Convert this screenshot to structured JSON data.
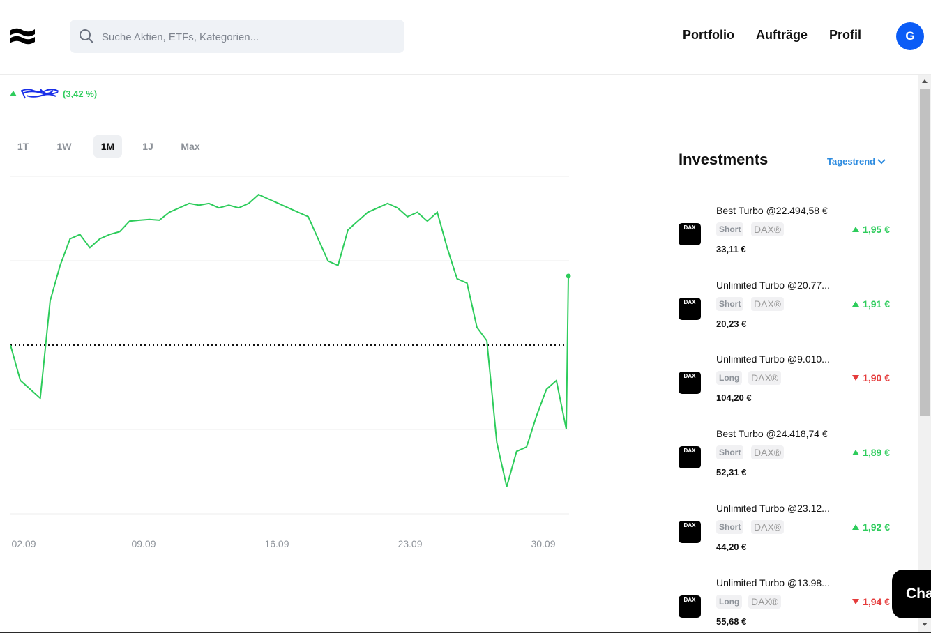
{
  "header": {
    "search_placeholder": "Suche Aktien, ETFs, Kategorien...",
    "nav": [
      "Portfolio",
      "Aufträge",
      "Profil"
    ],
    "avatar_initial": "G"
  },
  "performance": {
    "percent": "(3,42 %)",
    "direction": "up"
  },
  "ranges": [
    "1T",
    "1W",
    "1M",
    "1J",
    "Max"
  ],
  "active_range": "1M",
  "chart_data": {
    "type": "line",
    "x_ticks": [
      "02.09",
      "09.09",
      "16.09",
      "23.09",
      "30.09"
    ],
    "color": "#2dcc5b",
    "baseline_style": "dotted",
    "series": [
      {
        "values": [
          0.0,
          -0.4,
          -0.5,
          -0.6,
          0.5,
          0.9,
          1.2,
          1.25,
          1.1,
          1.2,
          1.25,
          1.28,
          1.4,
          1.41,
          1.42,
          1.41,
          1.5,
          1.55,
          1.6,
          1.58,
          1.6,
          1.55,
          1.58,
          1.55,
          1.6,
          1.7,
          1.65,
          1.6,
          1.55,
          1.5,
          1.45,
          1.2,
          0.95,
          0.9,
          1.3,
          1.4,
          1.5,
          1.55,
          1.6,
          1.55,
          1.45,
          1.5,
          1.4,
          1.5,
          1.1,
          0.75,
          0.7,
          0.2,
          0.05,
          -1.1,
          -1.6,
          -1.2,
          -1.15,
          -0.8,
          -0.5,
          -0.4,
          -0.95
        ]
      }
    ],
    "last_point": 0.78,
    "grid": true
  },
  "investments": {
    "title": "Investments",
    "trend_label": "Tagestrend",
    "items": [
      {
        "name": "Best Turbo @22.494,58 €",
        "type": "Short",
        "underlying": "DAX®",
        "value": "33,11 €",
        "change": "1,95 €",
        "dir": "up",
        "icon_text": "DAX"
      },
      {
        "name": "Unlimited Turbo @20.77...",
        "type": "Short",
        "underlying": "DAX®",
        "value": "20,23 €",
        "change": "1,91 €",
        "dir": "up",
        "icon_text": "DAX"
      },
      {
        "name": "Unlimited Turbo @9.010...",
        "type": "Long",
        "underlying": "DAX®",
        "value": "104,20 €",
        "change": "1,90 €",
        "dir": "down",
        "icon_text": "DAX"
      },
      {
        "name": "Best Turbo @24.418,74 €",
        "type": "Short",
        "underlying": "DAX®",
        "value": "52,31 €",
        "change": "1,89 €",
        "dir": "up",
        "icon_text": "DAX"
      },
      {
        "name": "Unlimited Turbo @23.12...",
        "type": "Short",
        "underlying": "DAX®",
        "value": "44,20 €",
        "change": "1,92 €",
        "dir": "up",
        "icon_text": "DAX"
      },
      {
        "name": "Unlimited Turbo @13.98...",
        "type": "Long",
        "underlying": "DAX®",
        "value": "55,68 €",
        "change": "1,94 €",
        "dir": "down",
        "icon_text": "DAX"
      }
    ]
  },
  "chat_label": "Cha"
}
